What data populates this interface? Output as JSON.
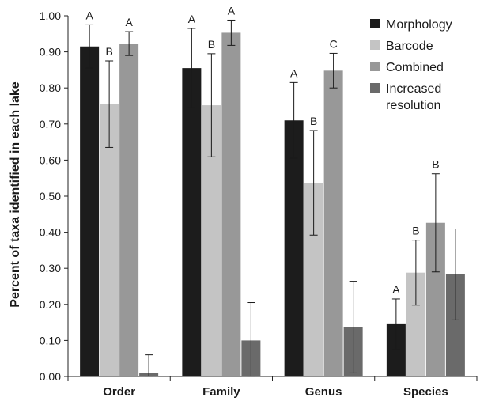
{
  "chart_data": {
    "type": "bar",
    "title": "",
    "xlabel": "",
    "ylabel": "Percent of taxa identified in each lake",
    "ylim": [
      0,
      1.0
    ],
    "yticks": [
      "0.00",
      "0.10",
      "0.20",
      "0.30",
      "0.40",
      "0.50",
      "0.60",
      "0.70",
      "0.80",
      "0.90",
      "1.00"
    ],
    "categories": [
      "Order",
      "Family",
      "Genus",
      "Species"
    ],
    "series": [
      {
        "name": "Morphology",
        "color": "#1c1c1c",
        "values": [
          0.915,
          0.855,
          0.71,
          0.145
        ],
        "error": [
          0.06,
          0.11,
          0.105,
          0.07
        ],
        "letters": [
          "A",
          "A",
          "A",
          "A"
        ]
      },
      {
        "name": "Barcode",
        "color": "#c4c4c4",
        "values": [
          0.755,
          0.752,
          0.537,
          0.288
        ],
        "error": [
          0.12,
          0.143,
          0.145,
          0.09
        ],
        "letters": [
          "B",
          "B",
          "B",
          "B"
        ]
      },
      {
        "name": "Combined",
        "color": "#989898",
        "values": [
          0.923,
          0.953,
          0.848,
          0.426
        ],
        "error": [
          0.033,
          0.035,
          0.048,
          0.136
        ],
        "letters": [
          "A",
          "A",
          "C",
          "B"
        ]
      },
      {
        "name": "Increased\nresolution",
        "color": "#6a6a6a",
        "values": [
          0.01,
          0.1,
          0.137,
          0.283
        ],
        "error": [
          0.05,
          0.105,
          0.127,
          0.126
        ],
        "letters": [
          "",
          "",
          "",
          ""
        ]
      }
    ],
    "legend_position": "top-right",
    "grid": false
  }
}
